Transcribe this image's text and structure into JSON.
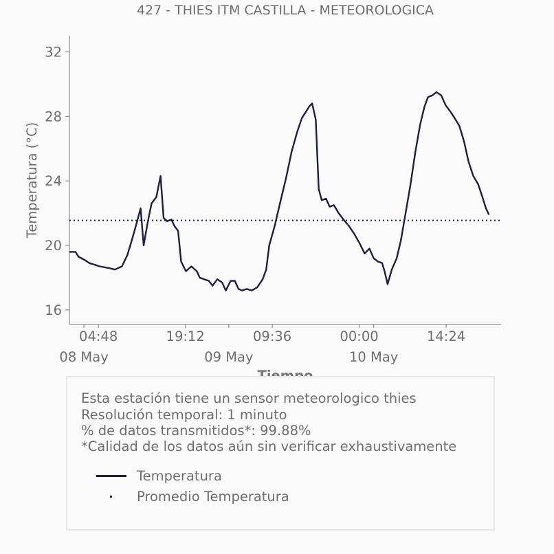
{
  "chart_data": {
    "type": "line",
    "title": "427 - THIES ITM CASTILLA - METEOROLOGICA",
    "xlabel": "Tiempo",
    "ylabel": "Temperatura (°C)",
    "ylim": [
      15.1,
      33.0
    ],
    "yticks": [
      16,
      20,
      24,
      28,
      32
    ],
    "x_range_hours": [
      0,
      71.5
    ],
    "xticks": [
      {
        "h": 4.8,
        "label": "04:48"
      },
      {
        "h": 19.2,
        "label": "19:12"
      },
      {
        "h": 33.6,
        "label": "09:36"
      },
      {
        "h": 48.0,
        "label": "00:00"
      },
      {
        "h": 62.4,
        "label": "14:24"
      }
    ],
    "date_ticks": [
      {
        "h": 2.4,
        "label": "08 May"
      },
      {
        "h": 26.4,
        "label": "09 May"
      },
      {
        "h": 50.4,
        "label": "10 May"
      }
    ],
    "grid": false,
    "series": [
      {
        "name": "Temperatura",
        "color": "#1e1e46",
        "style": "solid",
        "points": [
          [
            0.0,
            19.6
          ],
          [
            1.0,
            19.6
          ],
          [
            1.5,
            19.3
          ],
          [
            2.5,
            19.1
          ],
          [
            3.3,
            18.9
          ],
          [
            4.2,
            18.8
          ],
          [
            5.0,
            18.7
          ],
          [
            6.5,
            18.6
          ],
          [
            7.5,
            18.5
          ],
          [
            8.7,
            18.7
          ],
          [
            9.6,
            19.4
          ],
          [
            10.4,
            20.4
          ],
          [
            11.0,
            21.2
          ],
          [
            11.8,
            22.3
          ],
          [
            12.3,
            20.0
          ],
          [
            13.0,
            21.5
          ],
          [
            13.6,
            22.6
          ],
          [
            14.4,
            23.0
          ],
          [
            15.1,
            24.3
          ],
          [
            15.6,
            21.7
          ],
          [
            16.2,
            21.5
          ],
          [
            16.9,
            21.6
          ],
          [
            17.4,
            21.2
          ],
          [
            18.0,
            20.9
          ],
          [
            18.5,
            19.0
          ],
          [
            19.3,
            18.4
          ],
          [
            20.2,
            18.7
          ],
          [
            21.1,
            18.4
          ],
          [
            21.6,
            18.0
          ],
          [
            22.3,
            17.9
          ],
          [
            23.1,
            17.8
          ],
          [
            23.7,
            17.5
          ],
          [
            24.5,
            17.9
          ],
          [
            25.3,
            17.7
          ],
          [
            25.9,
            17.2
          ],
          [
            26.7,
            17.8
          ],
          [
            27.4,
            17.8
          ],
          [
            28.0,
            17.3
          ],
          [
            28.6,
            17.2
          ],
          [
            29.4,
            17.3
          ],
          [
            30.2,
            17.2
          ],
          [
            31.1,
            17.4
          ],
          [
            32.0,
            17.9
          ],
          [
            32.6,
            18.5
          ],
          [
            33.1,
            20.0
          ],
          [
            34.0,
            21.2
          ],
          [
            35.0,
            22.8
          ],
          [
            35.9,
            24.2
          ],
          [
            36.8,
            25.8
          ],
          [
            37.7,
            27.0
          ],
          [
            38.5,
            27.9
          ],
          [
            39.2,
            28.3
          ],
          [
            39.7,
            28.6
          ],
          [
            40.2,
            28.8
          ],
          [
            40.8,
            27.8
          ],
          [
            41.3,
            23.5
          ],
          [
            41.8,
            22.8
          ],
          [
            42.5,
            22.9
          ],
          [
            43.1,
            22.4
          ],
          [
            43.8,
            22.5
          ],
          [
            44.6,
            22.0
          ],
          [
            45.4,
            21.6
          ],
          [
            46.3,
            21.2
          ],
          [
            47.2,
            20.7
          ],
          [
            48.1,
            20.1
          ],
          [
            48.9,
            19.5
          ],
          [
            49.7,
            19.8
          ],
          [
            50.4,
            19.2
          ],
          [
            51.1,
            19.0
          ],
          [
            51.8,
            18.9
          ],
          [
            52.2,
            18.4
          ],
          [
            52.7,
            17.6
          ],
          [
            53.4,
            18.5
          ],
          [
            54.2,
            19.2
          ],
          [
            54.9,
            20.3
          ],
          [
            55.6,
            21.8
          ],
          [
            56.5,
            23.8
          ],
          [
            57.3,
            25.8
          ],
          [
            58.1,
            27.5
          ],
          [
            58.8,
            28.6
          ],
          [
            59.4,
            29.2
          ],
          [
            60.1,
            29.3
          ],
          [
            60.8,
            29.5
          ],
          [
            61.6,
            29.3
          ],
          [
            62.3,
            28.7
          ],
          [
            63.1,
            28.3
          ],
          [
            63.8,
            27.9
          ],
          [
            64.6,
            27.4
          ],
          [
            65.4,
            26.4
          ],
          [
            66.1,
            25.2
          ],
          [
            66.9,
            24.3
          ],
          [
            67.7,
            23.8
          ],
          [
            68.4,
            23.0
          ],
          [
            69.0,
            22.3
          ],
          [
            69.5,
            21.9
          ]
        ]
      },
      {
        "name": "Promedio Temperatura",
        "color": "#1e1e46",
        "style": "dotted",
        "value": 21.55
      }
    ]
  },
  "info": {
    "line1": "Esta estación tiene un sensor meteorologico thies",
    "line2": "Resolución temporal: 1 minuto",
    "line3": "% de datos transmitidos*: 99.88%",
    "line4": "*Calidad de los datos aún sin verificar exhaustivamente"
  },
  "legend": {
    "series1": "Temperatura",
    "series2": "Promedio Temperatura"
  },
  "colors": {
    "line": "#1e1e46",
    "text": "#6e6e6e",
    "axis": "#7a7a7a",
    "background": "#fafafa"
  }
}
